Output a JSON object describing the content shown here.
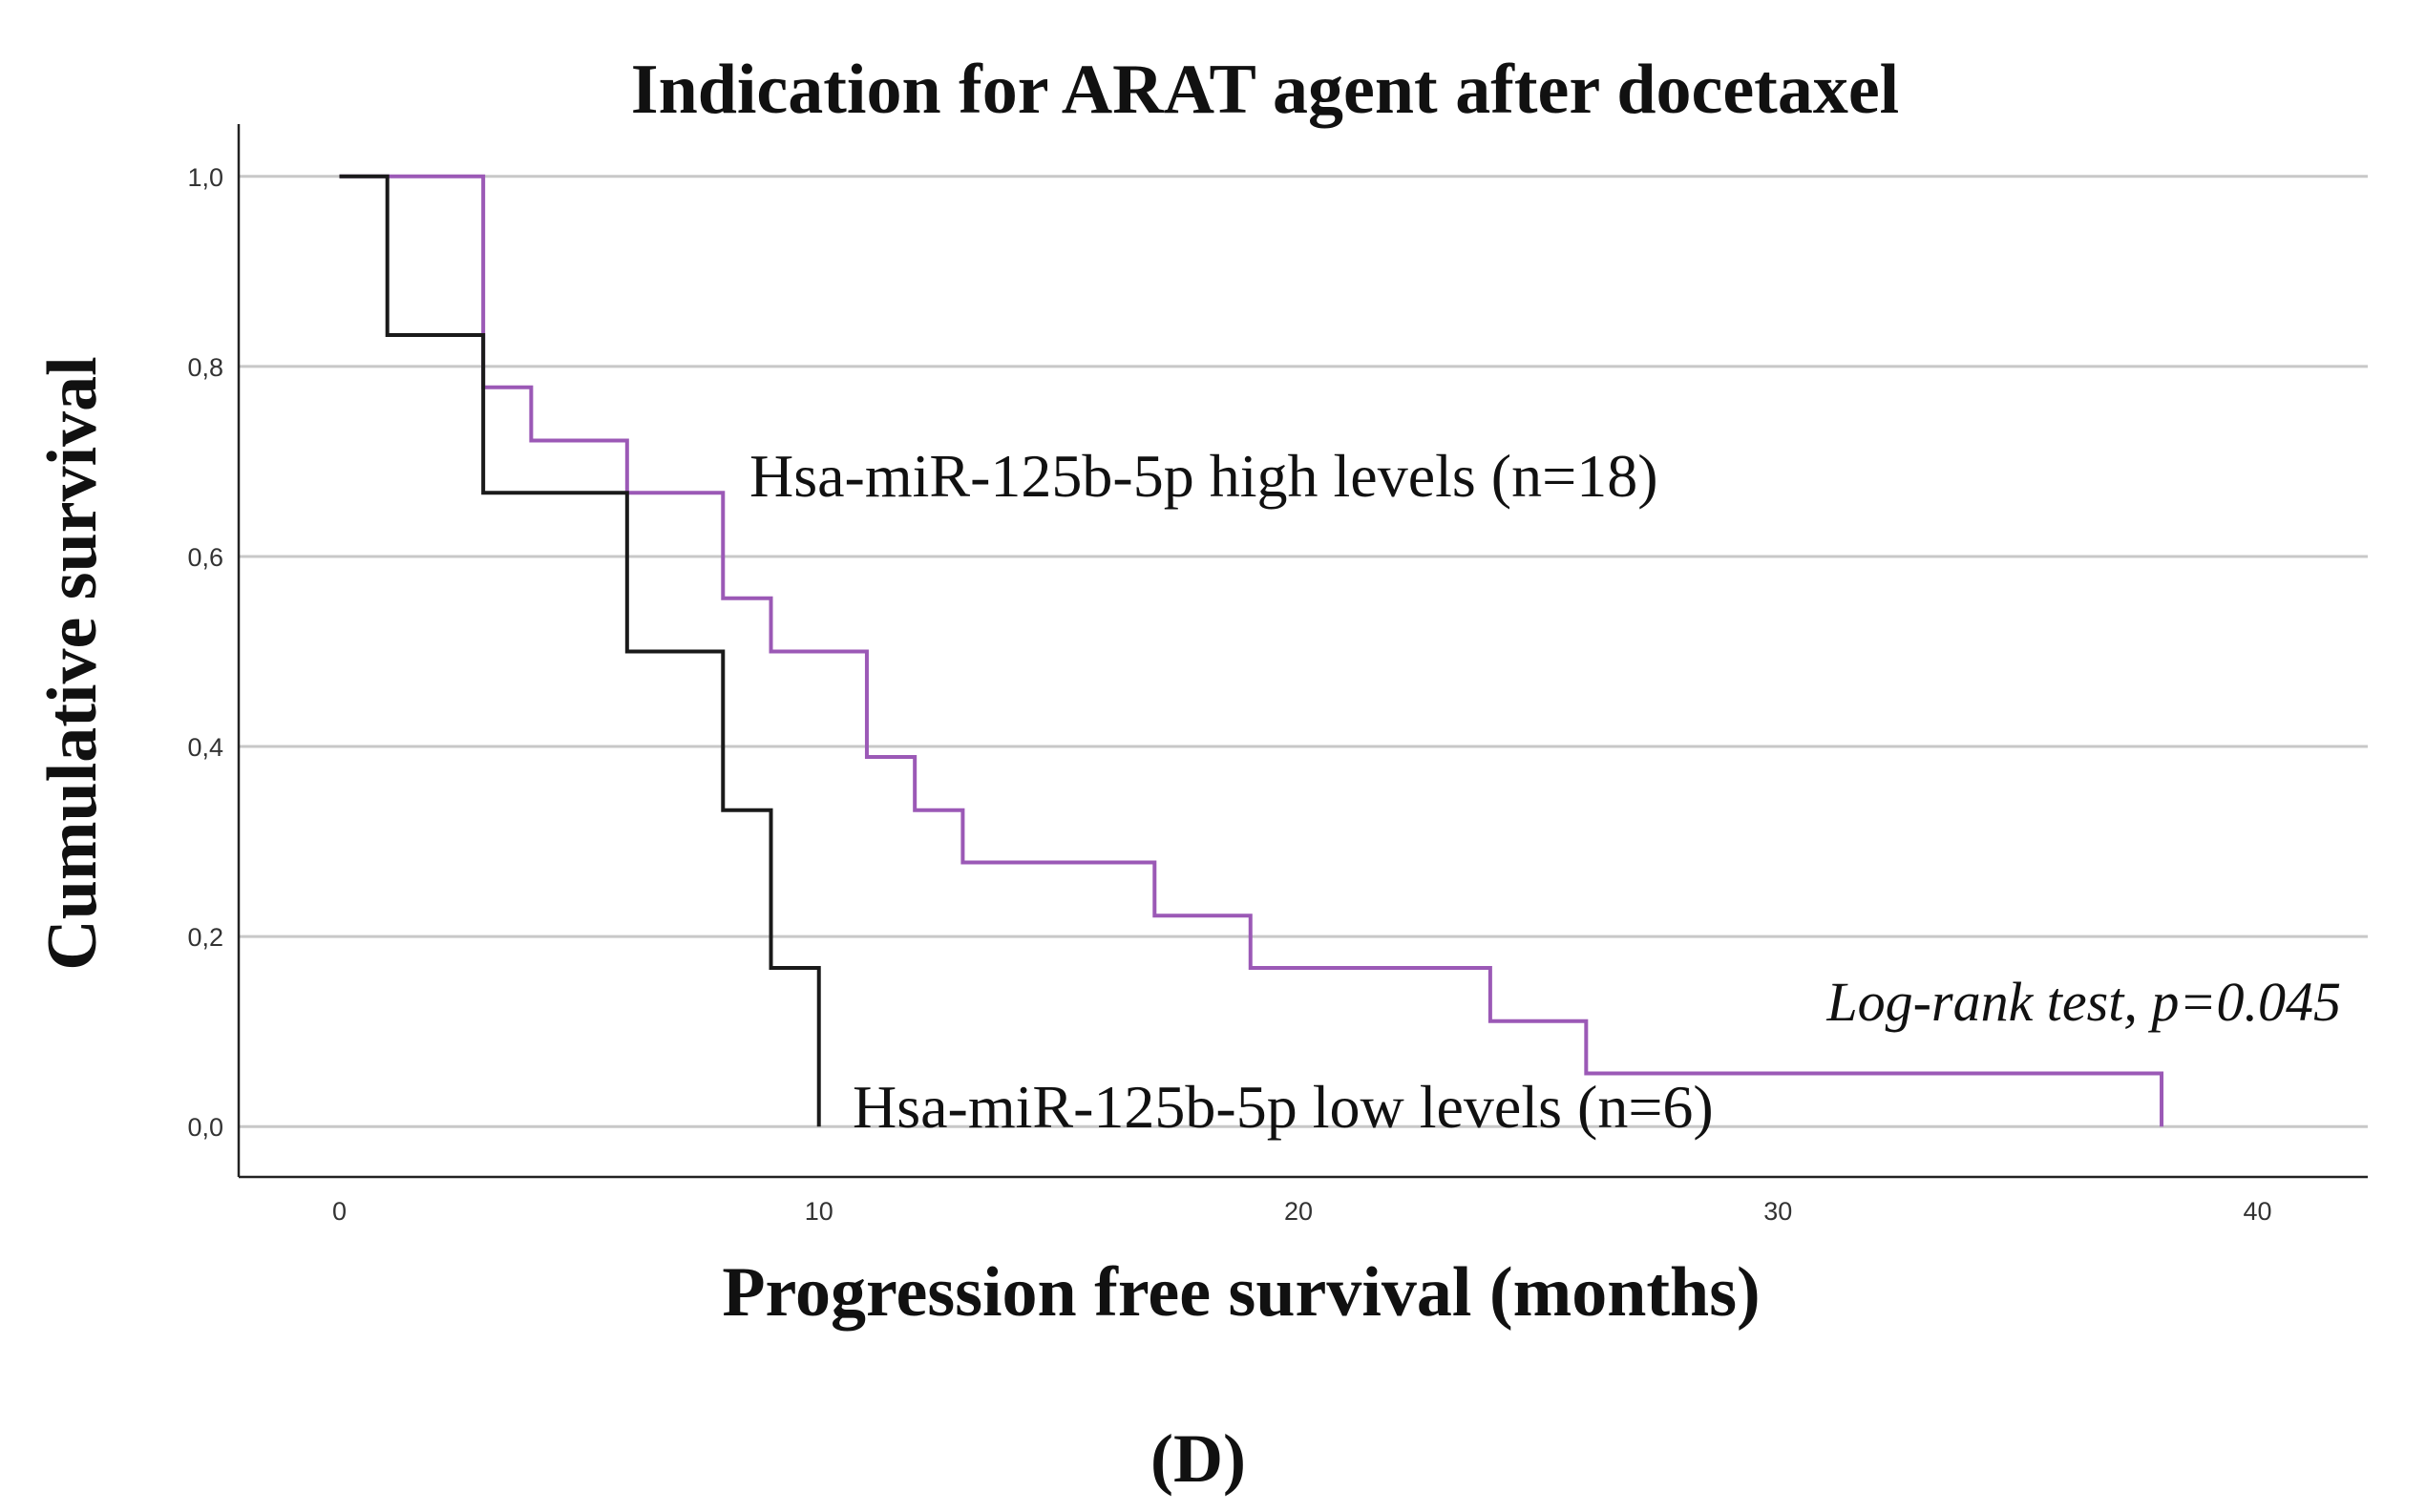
{
  "chart_data": {
    "type": "line",
    "subtype": "kaplan-meier",
    "title": "Indication for ARAT agent after docetaxel",
    "xlabel": "Progression free survival (months)",
    "ylabel": "Cumulative survival",
    "xlim": [
      -2.1,
      42.3
    ],
    "ylim": [
      -0.053,
      1.055
    ],
    "x_ticks": [
      0,
      10,
      20,
      30,
      40
    ],
    "x_tick_labels": [
      "0",
      "10",
      "20",
      "30",
      "40"
    ],
    "y_ticks": [
      0.0,
      0.2,
      0.4,
      0.6,
      0.8,
      1.0
    ],
    "y_tick_labels": [
      "0,0",
      "0,2",
      "0,4",
      "0,6",
      "0,8",
      "1,0"
    ],
    "grid": "horizontal",
    "series": [
      {
        "name": "Hsa-miR-125b-5p high levels (n=18)",
        "color": "#9b59b6",
        "x": [
          0,
          3,
          4,
          6,
          8,
          9,
          11,
          12,
          13,
          17,
          19,
          24,
          26,
          38
        ],
        "y": [
          1.0,
          0.778,
          0.722,
          0.667,
          0.556,
          0.5,
          0.389,
          0.333,
          0.278,
          0.222,
          0.167,
          0.111,
          0.056,
          0.0
        ]
      },
      {
        "name": "Hsa-miR-125b-5p low levels (n=6)",
        "color": "#1a1a1a",
        "x": [
          0,
          1,
          3,
          6,
          8,
          9,
          10
        ],
        "y": [
          1.0,
          0.833,
          0.667,
          0.5,
          0.333,
          0.167,
          0.0
        ]
      }
    ],
    "annotations": [
      {
        "text": "Log-rank test, p=0.045",
        "x": 31.3,
        "y": 0.125
      }
    ]
  },
  "panel_label": "(D)"
}
